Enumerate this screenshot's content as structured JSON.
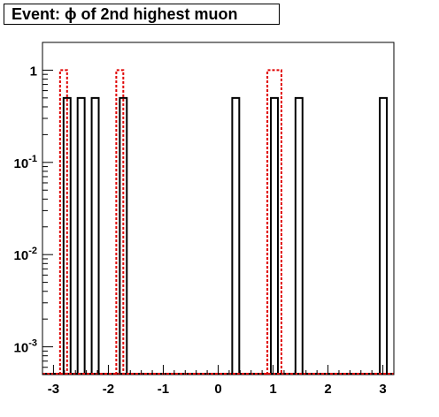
{
  "title": "Event: ϕ of 2nd highest muon",
  "chart_data": {
    "type": "step-histogram",
    "title": "Event: ϕ of 2nd highest muon",
    "xlabel": "",
    "ylabel": "",
    "xlim": [
      -3.2,
      3.2
    ],
    "ylim": [
      0.0005,
      2.0
    ],
    "yscale": "log",
    "grid": false,
    "bin_width": 0.128,
    "x_ticks": [
      {
        "value": -3,
        "label": "-3"
      },
      {
        "value": -2,
        "label": "-2"
      },
      {
        "value": -1,
        "label": "-1"
      },
      {
        "value": 0,
        "label": "0"
      },
      {
        "value": 1,
        "label": "1"
      },
      {
        "value": 2,
        "label": "2"
      },
      {
        "value": 3,
        "label": "3"
      }
    ],
    "y_ticks": [
      {
        "value": 1,
        "base": "1",
        "exp": ""
      },
      {
        "value": 0.1,
        "base": "10",
        "exp": "-1"
      },
      {
        "value": 0.01,
        "base": "10",
        "exp": "-2"
      },
      {
        "value": 0.001,
        "base": "10",
        "exp": "-3"
      }
    ],
    "series": [
      {
        "style": "solid",
        "color": "#000000",
        "bins": [
          {
            "x0": -2.816,
            "x1": -2.688,
            "y": 0.5
          },
          {
            "x0": -2.56,
            "x1": -2.432,
            "y": 0.5
          },
          {
            "x0": -2.304,
            "x1": -2.176,
            "y": 0.5
          },
          {
            "x0": -1.792,
            "x1": -1.664,
            "y": 0.5
          },
          {
            "x0": 0.256,
            "x1": 0.384,
            "y": 0.5
          },
          {
            "x0": 0.96,
            "x1": 1.088,
            "y": 0.5
          },
          {
            "x0": 1.408,
            "x1": 1.536,
            "y": 0.5
          },
          {
            "x0": 2.944,
            "x1": 3.072,
            "y": 0.5
          }
        ]
      },
      {
        "style": "dashed",
        "color": "#e00000",
        "bins": [
          {
            "x0": -2.88,
            "x1": -2.752,
            "y": 1
          },
          {
            "x0": -1.856,
            "x1": -1.728,
            "y": 1
          },
          {
            "x0": 0.896,
            "x1": 1.152,
            "y": 1
          }
        ]
      }
    ]
  }
}
